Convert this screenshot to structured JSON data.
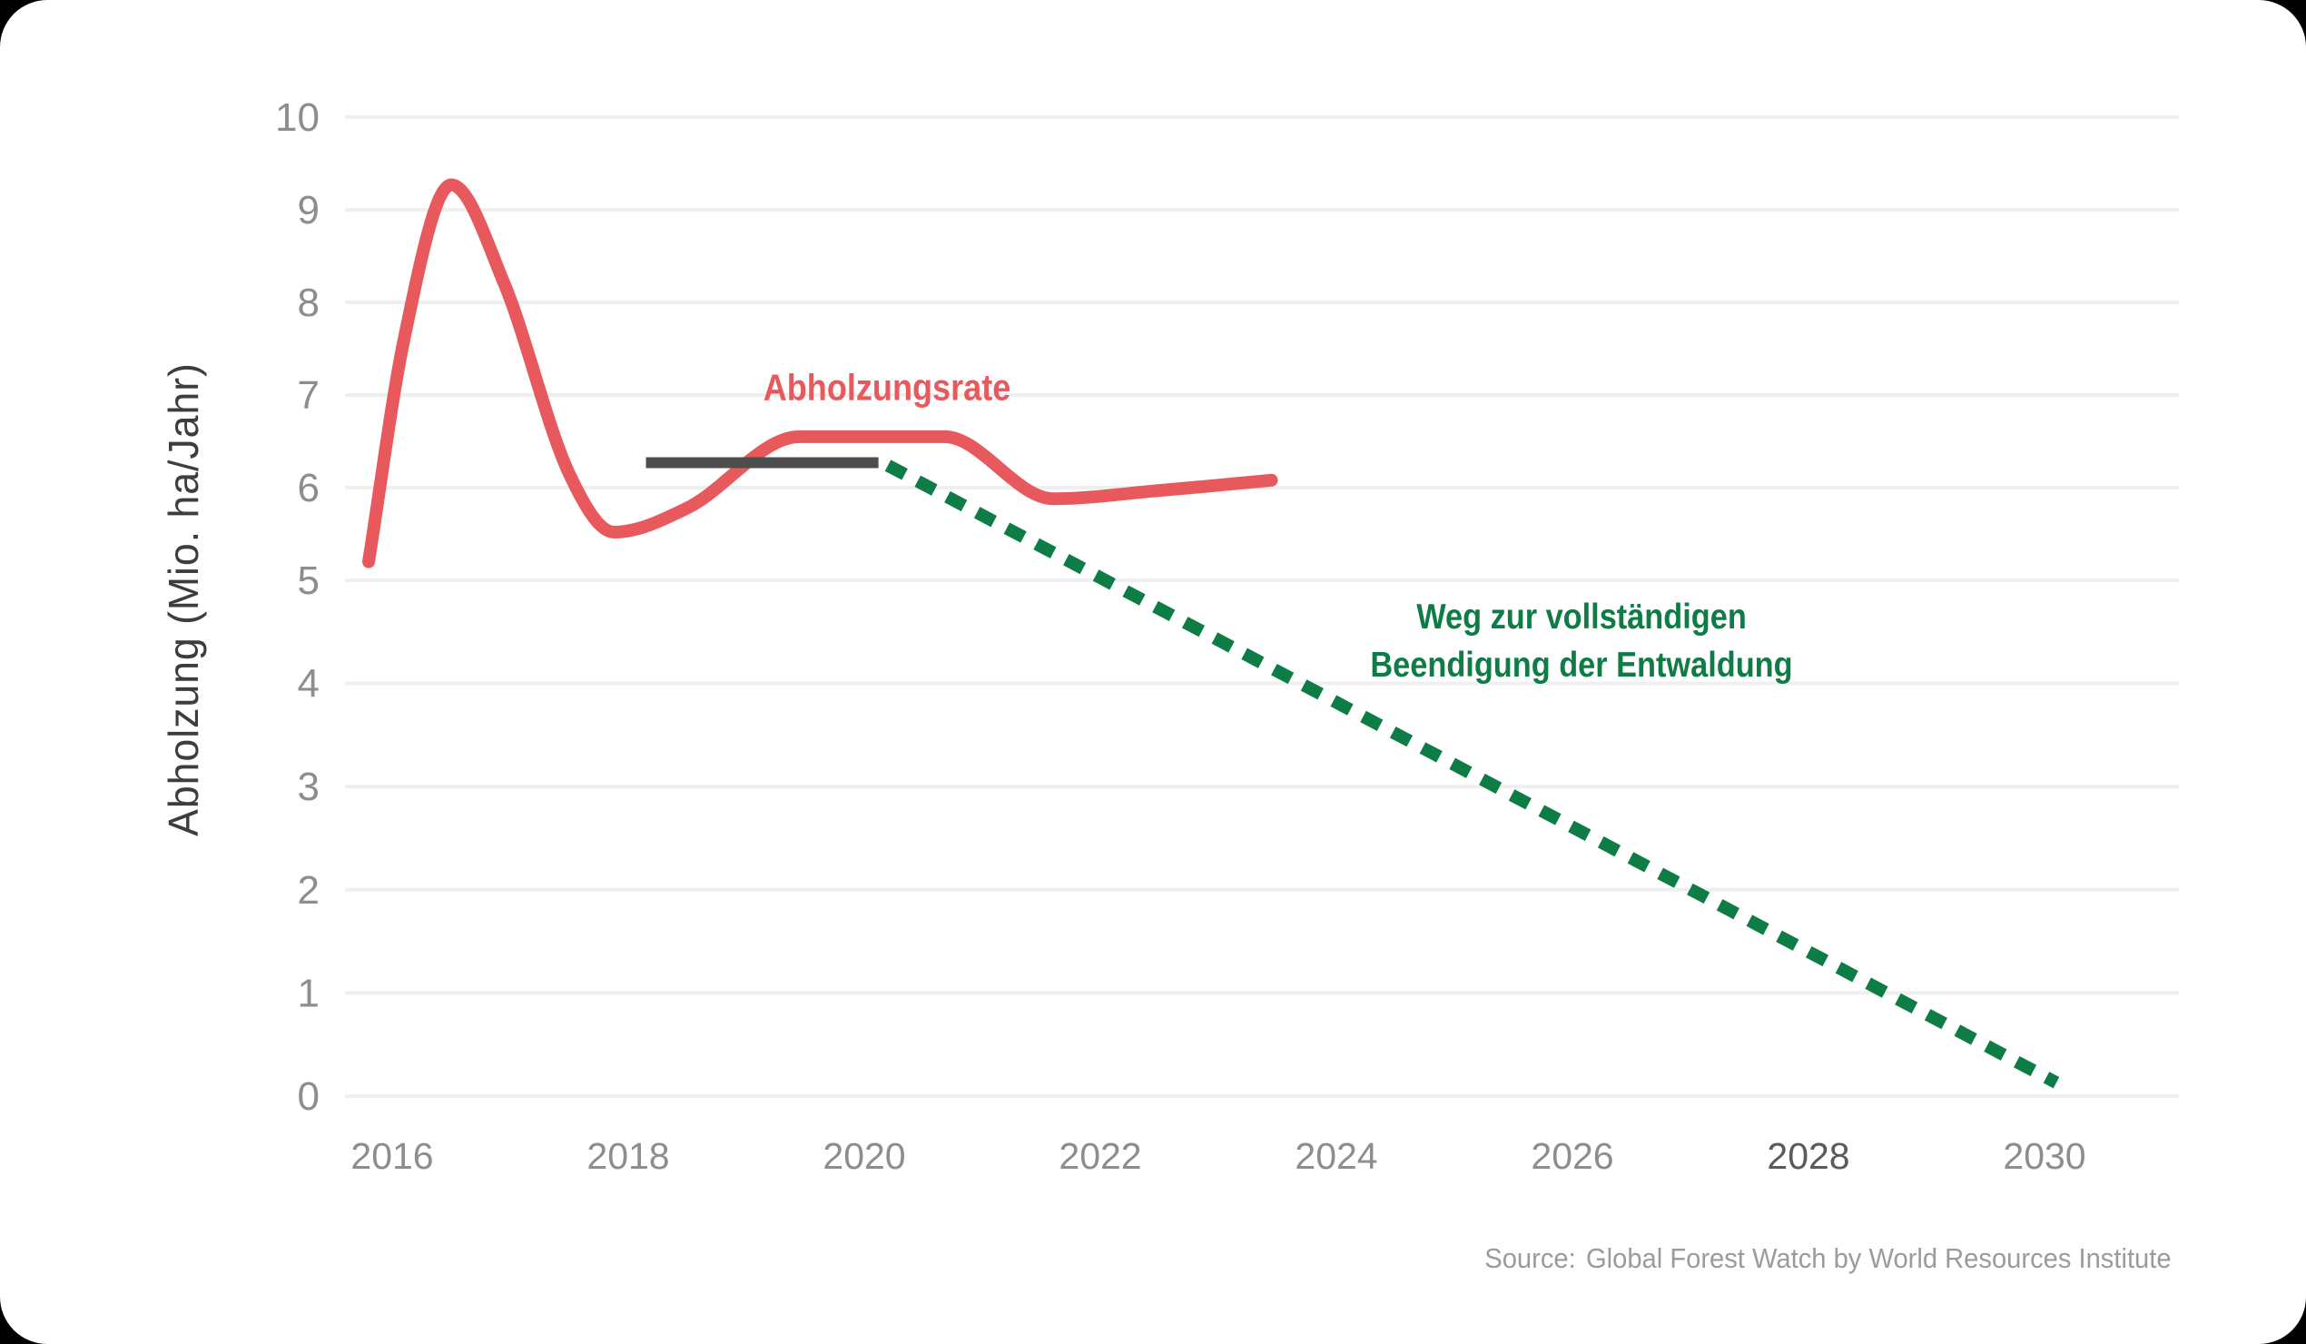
{
  "colors": {
    "page_background": "#000000",
    "card_background": "#ffffff",
    "red": "#e7595c",
    "green": "#0d7c45",
    "dark_gray": "#4d4d4d",
    "grid": "#efefef",
    "tick": "#8d8d8d",
    "tick_emphasis": "#5a5a5a",
    "ylabel_color": "#3d3d3d",
    "source_color": "#9b9b9b"
  },
  "chart_data": {
    "type": "line",
    "title": "",
    "xlabel": "",
    "ylabel": "Abholzung (Mio. ha/Jahr)",
    "ylim": [
      0,
      10
    ],
    "xlim": [
      2015.6,
      2031.1
    ],
    "grid": "horizontal",
    "legend_position": "none",
    "y_ticks": [
      0,
      1,
      2,
      3,
      4,
      5,
      6,
      7,
      8,
      9,
      10
    ],
    "x_ticks": [
      {
        "year": 2016,
        "label": "2016",
        "emphasis": false
      },
      {
        "year": 2018,
        "label": "2018",
        "emphasis": false
      },
      {
        "year": 2020,
        "label": "2020",
        "emphasis": false
      },
      {
        "year": 2022,
        "label": "2022",
        "emphasis": false
      },
      {
        "year": 2024,
        "label": "2024",
        "emphasis": false
      },
      {
        "year": 2026,
        "label": "2026",
        "emphasis": false
      },
      {
        "year": 2028,
        "label": "2028",
        "emphasis": true
      },
      {
        "year": 2030,
        "label": "2030",
        "emphasis": false
      }
    ],
    "series": [
      {
        "name": "Abholzungsrate",
        "role": "deforestation-rate",
        "style": "smooth",
        "color_key": "red",
        "points": [
          [
            2015.8,
            5.2
          ],
          [
            2016.1,
            7.6
          ],
          [
            2016.5,
            9.27
          ],
          [
            2016.95,
            8.2
          ],
          [
            2017.5,
            6.15
          ],
          [
            2017.88,
            5.52
          ],
          [
            2018.5,
            5.78
          ],
          [
            2019.45,
            6.55
          ],
          [
            2020.05,
            6.55
          ],
          [
            2020.68,
            6.55
          ],
          [
            2021.6,
            5.88
          ],
          [
            2022.5,
            5.97
          ],
          [
            2023.45,
            6.08
          ]
        ]
      },
      {
        "name": "",
        "role": "baseline-reference",
        "style": "solid",
        "color_key": "dark_gray",
        "points": [
          [
            2018.15,
            6.27
          ],
          [
            2020.12,
            6.27
          ]
        ]
      },
      {
        "name": "Weg zur vollständigen Beendigung der Entwaldung",
        "role": "target-path",
        "style": "dashed",
        "color_key": "green",
        "points": [
          [
            2020.2,
            6.24
          ],
          [
            2030.1,
            0.13
          ]
        ]
      }
    ],
    "annotations": {
      "rate_label": "Abholzungsrate",
      "target_line1": "Weg zur vollständigen",
      "target_line2": "Beendigung der Entwaldung"
    },
    "source_prefix": "Source:",
    "source_text": "Global Forest Watch by World Resources Institute"
  }
}
